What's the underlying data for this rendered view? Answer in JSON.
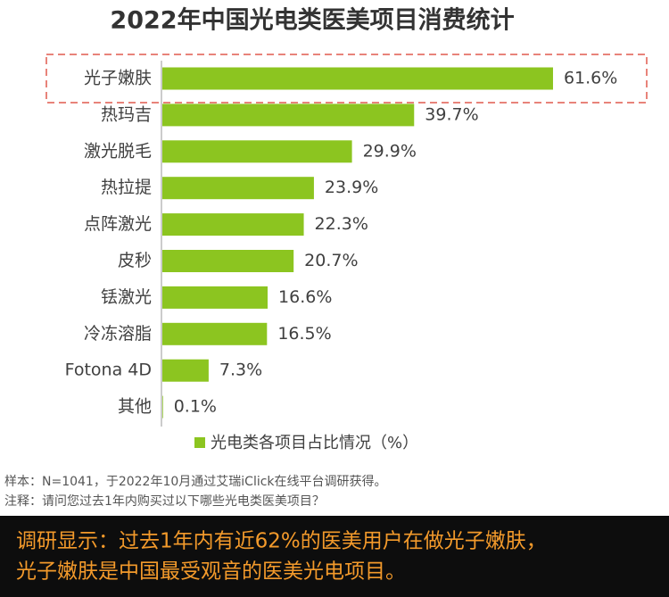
{
  "chart_data": {
    "type": "bar",
    "orientation": "horizontal",
    "title": "2022年中国光电类医美项目消费统计",
    "categories": [
      "光子嫩肤",
      "热玛吉",
      "激光脱毛",
      "热拉提",
      "点阵激光",
      "皮秒",
      "铥激光",
      "冷冻溶脂",
      "Fotona 4D",
      "其他"
    ],
    "series": [
      {
        "name": "光电类各项目占比情况（%）",
        "color": "#8cc520",
        "values": [
          61.6,
          39.7,
          29.9,
          23.9,
          22.3,
          20.7,
          16.6,
          16.5,
          7.3,
          0.1
        ],
        "value_labels": [
          "61.6%",
          "39.7%",
          "29.9%",
          "23.9%",
          "22.3%",
          "20.7%",
          "16.6%",
          "16.5%",
          "7.3%",
          "0.1%"
        ]
      }
    ],
    "legend": "bottom"
  },
  "notes": [
    "样本：N=1041，于2022年10月通过艾瑞iClick在线平台调研获得。",
    "注释：请问您过去1年内购买过以下哪些光电类医美项目？"
  ],
  "conclusion": [
    "调研显示：过去1年内有近62%的医美用户在做光子嫩肤，",
    "光子嫩肤是中国最受观音的医美光电项目。"
  ]
}
